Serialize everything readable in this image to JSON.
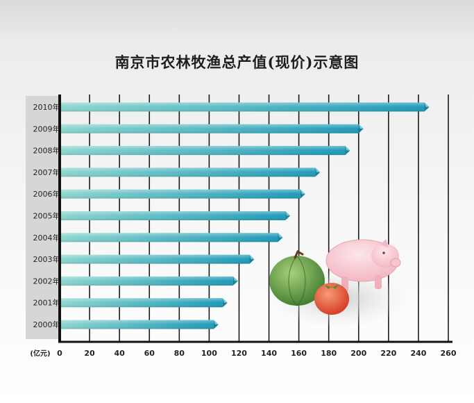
{
  "chart_data": {
    "type": "bar",
    "orientation": "horizontal",
    "title": "南京市农林牧渔总产值(现价)示意图",
    "xlabel": "(亿元)",
    "ylabel": "",
    "xlim": [
      0,
      260
    ],
    "xticks": [
      0,
      20,
      40,
      60,
      80,
      100,
      120,
      140,
      160,
      180,
      200,
      220,
      240,
      260
    ],
    "grid": "vertical",
    "categories": [
      "2010年",
      "2009年",
      "2008年",
      "2007年",
      "2006年",
      "2005年",
      "2004年",
      "2003年",
      "2002年",
      "2001年",
      "2000年"
    ],
    "values": [
      244,
      200,
      191,
      171,
      161,
      151,
      146,
      127,
      116,
      109,
      103
    ],
    "colors": {
      "bar_start": "#8dd6cf",
      "bar_end": "#1f9ab8",
      "label_bg": "#d6d6d6",
      "axis": "#111111"
    },
    "decoration_icons": [
      "pumpkin-icon",
      "tomato-icon",
      "pig-icon"
    ]
  }
}
